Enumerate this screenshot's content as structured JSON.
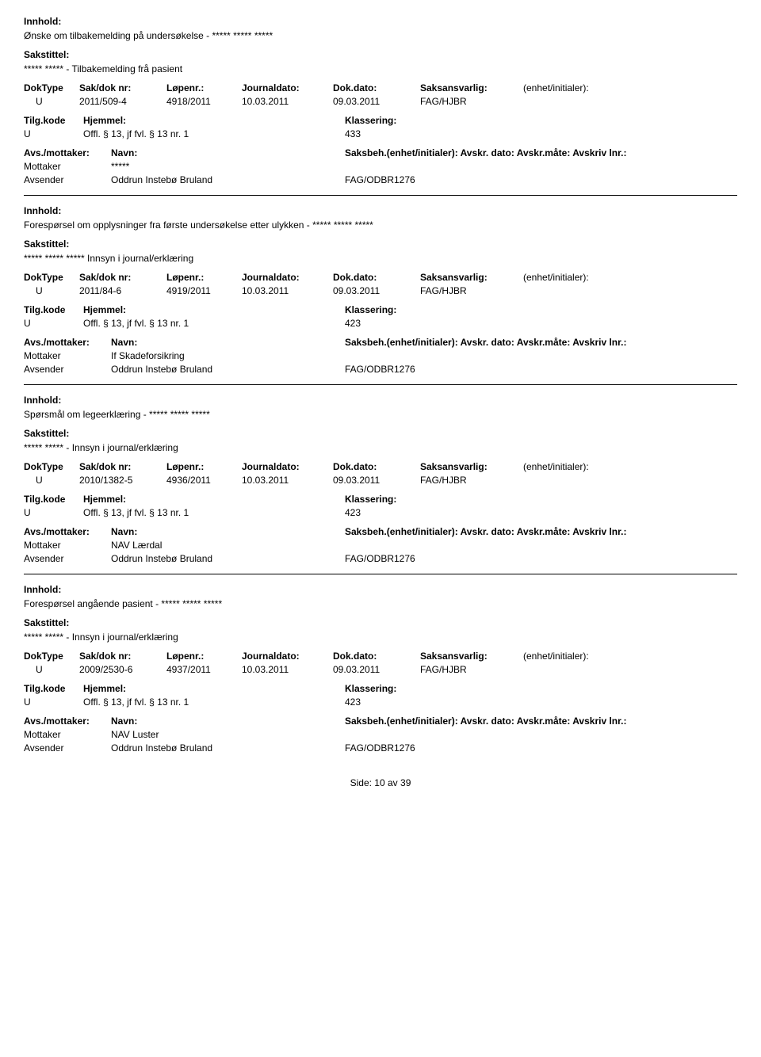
{
  "labels": {
    "innhold": "Innhold:",
    "sakstittel": "Sakstittel:",
    "doktype": "DokType",
    "sakdok": "Sak/dok nr:",
    "lopenr": "Løpenr.:",
    "journaldato": "Journaldato:",
    "dokdato": "Dok.dato:",
    "saksansvarlig": "Saksansvarlig:",
    "enhet": "(enhet/initialer):",
    "tilgkode": "Tilg.kode",
    "hjemmel": "Hjemmel:",
    "klassering": "Klassering:",
    "avsmottaker": "Avs./mottaker:",
    "navn": "Navn:",
    "saksbeh": "Saksbeh.(enhet/initialer): Avskr. dato:  Avskr.måte: Avskriv lnr.:",
    "mottaker": "Mottaker",
    "avsender": "Avsender"
  },
  "records": [
    {
      "innhold": "Ønske om tilbakemelding på undersøkelse - ***** ***** *****",
      "sakstittel": "***** ***** - Tilbakemelding frå pasient",
      "doktype": "U",
      "sakdok": "2011/509-4",
      "lopenr": "4918/2011",
      "journaldato": "10.03.2011",
      "dokdato": "09.03.2011",
      "saksansvarlig": "FAG/HJBR",
      "tilgkode": "U",
      "hjemmel": "Offl. § 13, jf fvl. § 13 nr. 1",
      "klassering": "433",
      "mottaker_navn": "*****",
      "avsender_navn": "Oddrun Instebø Bruland",
      "avsender_code": "FAG/ODBR1276"
    },
    {
      "innhold": "Forespørsel om opplysninger fra første undersøkelse etter ulykken - ***** ***** *****",
      "sakstittel": "***** ***** ***** Innsyn i journal/erklæring",
      "doktype": "U",
      "sakdok": "2011/84-6",
      "lopenr": "4919/2011",
      "journaldato": "10.03.2011",
      "dokdato": "09.03.2011",
      "saksansvarlig": "FAG/HJBR",
      "tilgkode": "U",
      "hjemmel": "Offl. § 13, jf fvl. § 13 nr. 1",
      "klassering": "423",
      "mottaker_navn": "If Skadeforsikring",
      "avsender_navn": "Oddrun Instebø Bruland",
      "avsender_code": "FAG/ODBR1276"
    },
    {
      "innhold": "Spørsmål om legeerklæring - ***** ***** *****",
      "sakstittel": "***** ***** - Innsyn i journal/erklæring",
      "doktype": "U",
      "sakdok": "2010/1382-5",
      "lopenr": "4936/2011",
      "journaldato": "10.03.2011",
      "dokdato": "09.03.2011",
      "saksansvarlig": "FAG/HJBR",
      "tilgkode": "U",
      "hjemmel": "Offl. § 13, jf fvl. § 13 nr. 1",
      "klassering": "423",
      "mottaker_navn": "NAV Lærdal",
      "avsender_navn": "Oddrun Instebø Bruland",
      "avsender_code": "FAG/ODBR1276"
    },
    {
      "innhold": "Forespørsel angående pasient - ***** ***** *****",
      "sakstittel": "***** ***** - Innsyn i journal/erklæring",
      "doktype": "U",
      "sakdok": "2009/2530-6",
      "lopenr": "4937/2011",
      "journaldato": "10.03.2011",
      "dokdato": "09.03.2011",
      "saksansvarlig": "FAG/HJBR",
      "tilgkode": "U",
      "hjemmel": "Offl. § 13, jf fvl. § 13 nr. 1",
      "klassering": "423",
      "mottaker_navn": "NAV Luster",
      "avsender_navn": "Oddrun Instebø Bruland",
      "avsender_code": "FAG/ODBR1276"
    }
  ],
  "footer": {
    "side_label": "Side:",
    "page": "10",
    "av": "av",
    "total": "39"
  }
}
